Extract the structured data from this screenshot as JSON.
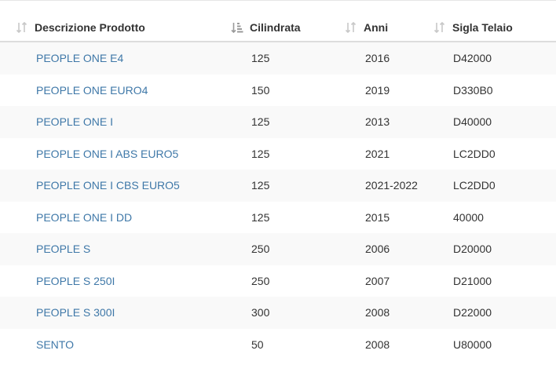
{
  "table": {
    "columns": [
      {
        "label": "Descrizione Prodotto",
        "sort_icon": "sort-neutral-icon"
      },
      {
        "label": "Cilindrata",
        "sort_icon": "sort-active-icon"
      },
      {
        "label": "Anni",
        "sort_icon": "sort-neutral-icon"
      },
      {
        "label": "Sigla Telaio",
        "sort_icon": "sort-neutral-icon"
      }
    ],
    "rows": [
      {
        "descrizione": "PEOPLE ONE E4",
        "cilindrata": "125",
        "anni": "2016",
        "sigla": "D42000"
      },
      {
        "descrizione": "PEOPLE ONE EURO4",
        "cilindrata": "150",
        "anni": "2019",
        "sigla": "D330B0"
      },
      {
        "descrizione": "PEOPLE ONE I",
        "cilindrata": "125",
        "anni": "2013",
        "sigla": "D40000"
      },
      {
        "descrizione": "PEOPLE ONE I ABS EURO5",
        "cilindrata": "125",
        "anni": "2021",
        "sigla": "LC2DD0"
      },
      {
        "descrizione": "PEOPLE ONE I CBS EURO5",
        "cilindrata": "125",
        "anni": "2021-2022",
        "sigla": "LC2DD0"
      },
      {
        "descrizione": "PEOPLE ONE I DD",
        "cilindrata": "125",
        "anni": "2015",
        "sigla": "40000"
      },
      {
        "descrizione": "PEOPLE S",
        "cilindrata": "250",
        "anni": "2006",
        "sigla": "D20000"
      },
      {
        "descrizione": "PEOPLE S 250I",
        "cilindrata": "250",
        "anni": "2007",
        "sigla": "D21000"
      },
      {
        "descrizione": "PEOPLE S 300I",
        "cilindrata": "300",
        "anni": "2008",
        "sigla": "D22000"
      },
      {
        "descrizione": "SENTO",
        "cilindrata": "50",
        "anni": "2008",
        "sigla": "U80000"
      }
    ]
  },
  "colors": {
    "link": "#3f78a8",
    "row_stripe": "#f9f9f9",
    "sort_icon_neutral": "#c8c8c8",
    "sort_icon_active": "#9a9a9a"
  }
}
